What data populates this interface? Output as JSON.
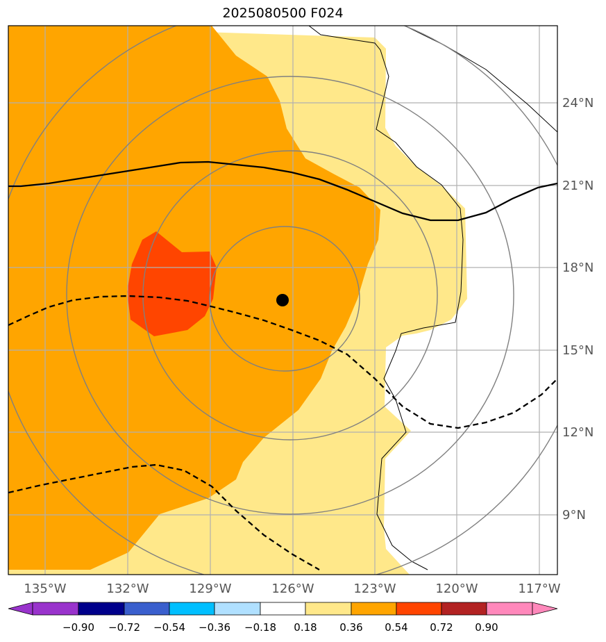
{
  "title": "2025080500 F024",
  "map": {
    "lon_range": [
      -136.3,
      -116.3
    ],
    "lat_range": [
      7.1,
      26.9
    ],
    "grid_lons": [
      -135,
      -132,
      -129,
      -126,
      -123,
      -120,
      -117
    ],
    "grid_lats": [
      9,
      12,
      15,
      18,
      21,
      24
    ],
    "lon_labels": [
      "135°W",
      "132°W",
      "129°W",
      "126°W",
      "123°W",
      "120°W",
      "117°W"
    ],
    "lat_labels": [
      "9°N",
      "12°N",
      "15°N",
      "18°N",
      "21°N",
      "24°N"
    ],
    "center_marker": {
      "lon": -126.35,
      "lat": 16.8
    },
    "range_ring_radii_deg": [
      3,
      6,
      9,
      12
    ]
  },
  "colorbar": {
    "tick_labels": [
      "−0.90",
      "−0.72",
      "−0.54",
      "−0.36",
      "−0.18",
      "0.18",
      "0.36",
      "0.54",
      "0.72",
      "0.90"
    ],
    "colors": [
      "#9933cc",
      "#00008b",
      "#3a5fcd",
      "#00bfff",
      "#b0e0ff",
      "#ffffff",
      "#ffe88a",
      "#ffa500",
      "#ff4500",
      "#b22222",
      "#ff88bb"
    ]
  },
  "fill_colors": {
    "light": "#ffe88a",
    "orange": "#ffa500",
    "red": "#ff4500"
  }
}
